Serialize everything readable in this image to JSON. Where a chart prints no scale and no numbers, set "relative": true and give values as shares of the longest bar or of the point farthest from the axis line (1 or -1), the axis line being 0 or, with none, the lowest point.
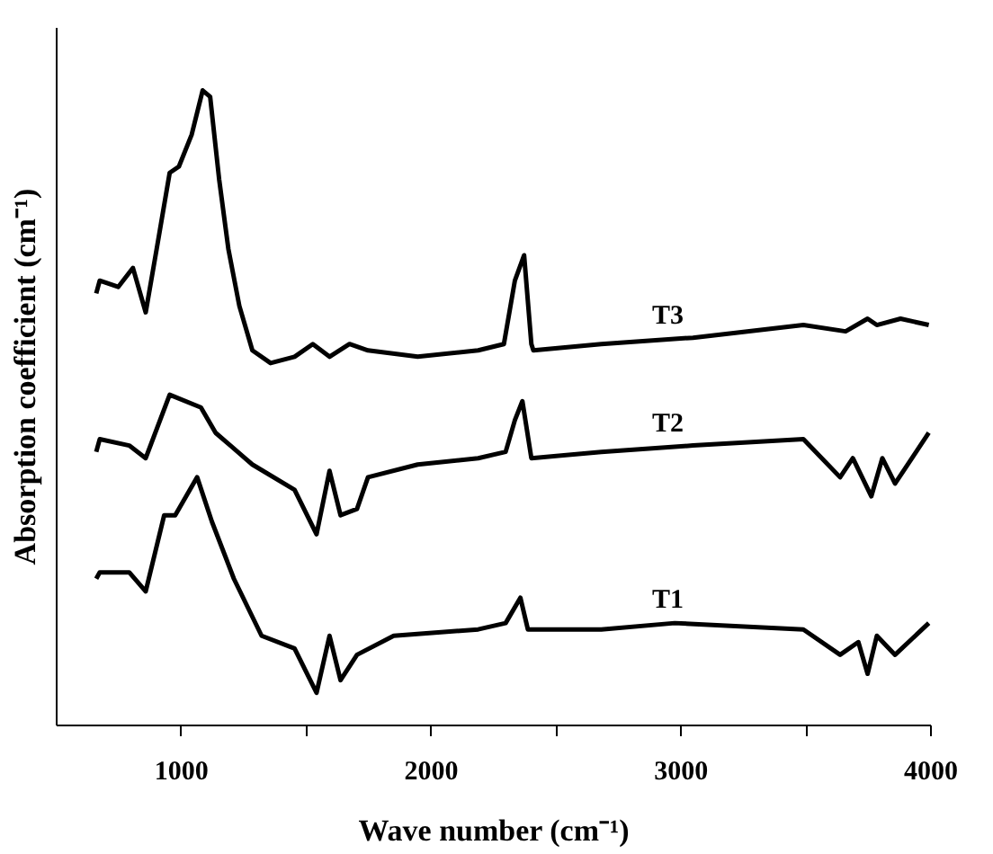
{
  "chart_data": {
    "type": "line",
    "relative": true,
    "xlabel": "Wave number (cm⁻¹)",
    "ylabel": "Absorption coefficient (cm⁻¹)",
    "xlim": [
      500,
      4000
    ],
    "xticks": [
      1000,
      {
        "value": 1500,
        "label": null
      },
      2000,
      {
        "value": 2500,
        "label": null
      },
      3000,
      {
        "value": 3500,
        "label": null
      },
      4000
    ],
    "grid": false,
    "legend": false,
    "marker": "none",
    "line_style": "solid",
    "series": [
      {
        "name": "T3",
        "color": "#000000",
        "x": [
          662,
          676,
          750,
          809,
          860,
          904,
          956,
          993,
          1044,
          1088,
          1118,
          1154,
          1191,
          1235,
          1287,
          1360,
          1456,
          1529,
          1596,
          1676,
          1750,
          1949,
          2191,
          2294,
          2338,
          2375,
          2404,
          2412,
          2684,
          3051,
          3493,
          3662,
          3750,
          3787,
          3882,
          3995
        ],
        "values": [
          0.68,
          0.7,
          0.69,
          0.72,
          0.65,
          0.75,
          0.87,
          0.88,
          0.93,
          1.0,
          0.99,
          0.86,
          0.75,
          0.66,
          0.59,
          0.57,
          0.58,
          0.6,
          0.58,
          0.6,
          0.59,
          0.58,
          0.59,
          0.6,
          0.7,
          0.74,
          0.6,
          0.59,
          0.6,
          0.61,
          0.63,
          0.62,
          0.64,
          0.63,
          0.64,
          0.63
        ]
      },
      {
        "name": "T2",
        "color": "#000000",
        "x": [
          662,
          676,
          794,
          860,
          956,
          1081,
          1140,
          1287,
          1456,
          1544,
          1596,
          1640,
          1706,
          1750,
          1949,
          2191,
          2301,
          2338,
          2368,
          2404,
          2684,
          3051,
          3493,
          3640,
          3691,
          3765,
          3809,
          3860,
          3995
        ],
        "values": [
          0.43,
          0.45,
          0.44,
          0.42,
          0.52,
          0.5,
          0.46,
          0.41,
          0.37,
          0.3,
          0.4,
          0.33,
          0.34,
          0.39,
          0.41,
          0.42,
          0.43,
          0.48,
          0.51,
          0.42,
          0.43,
          0.44,
          0.45,
          0.39,
          0.42,
          0.36,
          0.42,
          0.38,
          0.46
        ]
      },
      {
        "name": "T1",
        "color": "#000000",
        "x": [
          662,
          676,
          794,
          860,
          934,
          978,
          1066,
          1125,
          1213,
          1324,
          1456,
          1544,
          1596,
          1640,
          1706,
          1853,
          2191,
          2301,
          2360,
          2390,
          2684,
          2978,
          3493,
          3640,
          3713,
          3750,
          3787,
          3860,
          3995
        ],
        "values": [
          0.23,
          0.24,
          0.24,
          0.21,
          0.33,
          0.33,
          0.39,
          0.32,
          0.23,
          0.14,
          0.12,
          0.05,
          0.14,
          0.07,
          0.11,
          0.14,
          0.15,
          0.16,
          0.2,
          0.15,
          0.15,
          0.16,
          0.15,
          0.11,
          0.13,
          0.08,
          0.14,
          0.11,
          0.16
        ]
      }
    ]
  }
}
